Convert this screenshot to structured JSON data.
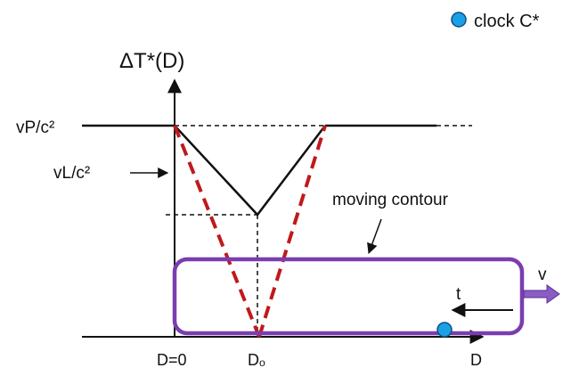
{
  "legend": {
    "marker_label": "clock C*",
    "marker_color": "#1aa0e6"
  },
  "axes": {
    "y_axis_label": "ΔT*(D)",
    "x_axis_label": "D"
  },
  "labels": {
    "vp_level": "vP/c²",
    "vl_label": "vL/c²",
    "d_zero": "D=0",
    "d_naught": "Dₒ",
    "moving_contour": "moving contour",
    "time_arrow": "t",
    "velocity": "v"
  },
  "colors": {
    "contour": "#7a3db0",
    "dashed": "#c0191b",
    "line": "#111111",
    "velocity_arrow": "#8a5cc4"
  }
}
